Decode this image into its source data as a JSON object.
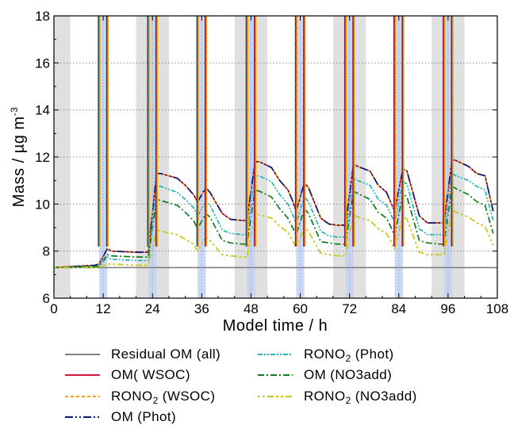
{
  "chart_data": {
    "type": "line",
    "xlabel": "Model  time  /  h",
    "ylabel_main": "Mass / µg m",
    "ylabel_sup": "-3",
    "xlim": [
      0,
      108
    ],
    "ylim": [
      6,
      18
    ],
    "xticks": [
      0,
      12,
      24,
      36,
      48,
      60,
      72,
      84,
      96,
      108
    ],
    "yticks": [
      6,
      8,
      10,
      12,
      14,
      16,
      18
    ],
    "grid": "horizontal dotted",
    "night_bands": [
      [
        0,
        4
      ],
      [
        20,
        28
      ],
      [
        44,
        52
      ],
      [
        68,
        76
      ],
      [
        92,
        100
      ]
    ],
    "emission_bands": [
      [
        11,
        13
      ],
      [
        23,
        25
      ],
      [
        35,
        37
      ],
      [
        47,
        49
      ],
      [
        59,
        61
      ],
      [
        71,
        73
      ],
      [
        83,
        85
      ],
      [
        95,
        97
      ]
    ],
    "emission_spikes": [
      11,
      13,
      23,
      25,
      35,
      37,
      47,
      49,
      59,
      61,
      71,
      73,
      83,
      85,
      95,
      97
    ],
    "series": [
      {
        "name": "Residual OM (all)",
        "color": "#808080",
        "dash": "solid",
        "x": [
          0,
          108
        ],
        "y": [
          7.3,
          7.3
        ]
      },
      {
        "name": "OM( WSOC)",
        "color": "#d6163c",
        "dash": "solid",
        "x": [
          0,
          10,
          11,
          13,
          14,
          20,
          22,
          23,
          25,
          26,
          30,
          32,
          34,
          35,
          37,
          38,
          41,
          43,
          46,
          47,
          49,
          50,
          53,
          55,
          57,
          58,
          59,
          61,
          62,
          65,
          67,
          69,
          70,
          71,
          73,
          74,
          77,
          79,
          81,
          82,
          83,
          85,
          86,
          89,
          91,
          94,
          95,
          97,
          98,
          101,
          103,
          105,
          107
        ],
        "y": [
          7.3,
          7.4,
          7.45,
          8.1,
          8.0,
          7.95,
          7.95,
          7.95,
          11.3,
          11.3,
          11.1,
          10.8,
          10.4,
          10.1,
          10.7,
          10.5,
          9.6,
          9.35,
          9.3,
          9.3,
          11.8,
          11.8,
          11.55,
          11.0,
          10.6,
          10.2,
          9.7,
          10.9,
          10.7,
          9.4,
          9.15,
          9.1,
          9.1,
          9.1,
          11.7,
          11.6,
          11.4,
          10.8,
          10.5,
          10.1,
          9.7,
          11.5,
          11.4,
          9.5,
          9.2,
          9.2,
          9.2,
          11.9,
          11.85,
          11.6,
          11.3,
          11.2,
          9.7
        ]
      },
      {
        "name": "RONO2 (WSOC)",
        "color": "#ff9a00",
        "dash": "4,3",
        "x": [
          0,
          10,
          11,
          13,
          14,
          20,
          22,
          23,
          25,
          26,
          30,
          32,
          34,
          35,
          37,
          38,
          41,
          43,
          46,
          47,
          49,
          50,
          53,
          55,
          57,
          58,
          59,
          61,
          62,
          65,
          67,
          69,
          70,
          71,
          73,
          74,
          77,
          79,
          81,
          82,
          83,
          85,
          86,
          89,
          91,
          94,
          95,
          97,
          98,
          101,
          103,
          105,
          107
        ],
        "y": [
          7.3,
          7.4,
          7.45,
          8.1,
          8.0,
          7.95,
          7.95,
          7.95,
          11.3,
          11.3,
          11.1,
          10.8,
          10.4,
          10.1,
          10.7,
          10.5,
          9.6,
          9.35,
          9.3,
          9.3,
          11.8,
          11.8,
          11.55,
          11.0,
          10.6,
          10.2,
          9.7,
          10.9,
          10.7,
          9.4,
          9.15,
          9.1,
          9.1,
          9.1,
          11.7,
          11.6,
          11.4,
          10.8,
          10.5,
          10.1,
          9.7,
          11.5,
          11.4,
          9.5,
          9.2,
          9.2,
          9.2,
          11.9,
          11.85,
          11.6,
          11.3,
          11.2,
          9.7
        ]
      },
      {
        "name": "OM (Phot)",
        "color": "#0b1a7a",
        "dash": "10,3,2,3,2,3",
        "x": [
          0,
          10,
          11,
          13,
          14,
          20,
          22,
          23,
          25,
          26,
          30,
          32,
          34,
          35,
          37,
          38,
          41,
          43,
          46,
          47,
          49,
          50,
          53,
          55,
          57,
          58,
          59,
          61,
          62,
          65,
          67,
          69,
          70,
          71,
          73,
          74,
          77,
          79,
          81,
          82,
          83,
          85,
          86,
          89,
          91,
          94,
          95,
          97,
          98,
          101,
          103,
          105,
          107
        ],
        "y": [
          7.3,
          7.4,
          7.45,
          8.1,
          8.0,
          7.95,
          7.95,
          7.95,
          11.3,
          11.3,
          11.1,
          10.8,
          10.4,
          10.1,
          10.7,
          10.5,
          9.6,
          9.35,
          9.3,
          9.3,
          11.8,
          11.8,
          11.55,
          11.0,
          10.6,
          10.2,
          9.7,
          10.9,
          10.7,
          9.4,
          9.15,
          9.1,
          9.1,
          9.1,
          11.7,
          11.6,
          11.4,
          10.8,
          10.5,
          10.1,
          9.7,
          11.5,
          11.4,
          9.5,
          9.2,
          9.2,
          9.2,
          11.9,
          11.85,
          11.6,
          11.3,
          11.2,
          9.7
        ]
      },
      {
        "name": "RONO2 (Phot)",
        "color": "#22b3b8",
        "dash": "6,2,2,2,2,2",
        "x": [
          0,
          10,
          11,
          13,
          14,
          20,
          22,
          23,
          25,
          26,
          30,
          32,
          34,
          35,
          37,
          38,
          41,
          43,
          46,
          47,
          49,
          50,
          53,
          55,
          57,
          58,
          59,
          61,
          62,
          65,
          67,
          69,
          70,
          71,
          73,
          74,
          77,
          79,
          81,
          82,
          83,
          85,
          86,
          89,
          91,
          94,
          95,
          97,
          98,
          101,
          103,
          105,
          107
        ],
        "y": [
          7.3,
          7.35,
          7.35,
          7.75,
          7.65,
          7.6,
          7.6,
          7.6,
          10.8,
          10.75,
          10.5,
          10.2,
          9.85,
          9.5,
          10.1,
          9.95,
          8.9,
          8.75,
          8.7,
          8.7,
          11.2,
          11.2,
          10.95,
          10.4,
          10.0,
          9.6,
          9.2,
          10.3,
          10.1,
          8.85,
          8.65,
          8.6,
          8.6,
          8.6,
          11.1,
          11.0,
          10.8,
          10.2,
          9.95,
          9.6,
          9.2,
          10.95,
          10.85,
          8.95,
          8.7,
          8.7,
          8.7,
          11.3,
          11.2,
          11.0,
          10.75,
          10.6,
          9.3
        ]
      },
      {
        "name": "OM (NO3add)",
        "color": "#0e7c1c",
        "dash": "8,3,2,3",
        "x": [
          0,
          10,
          11,
          13,
          14,
          20,
          22,
          23,
          25,
          26,
          30,
          32,
          34,
          35,
          37,
          38,
          41,
          43,
          46,
          47,
          49,
          50,
          53,
          55,
          57,
          58,
          59,
          61,
          62,
          65,
          67,
          69,
          70,
          71,
          73,
          74,
          77,
          79,
          81,
          82,
          83,
          85,
          86,
          89,
          91,
          94,
          95,
          97,
          98,
          101,
          103,
          105,
          107
        ],
        "y": [
          7.3,
          7.35,
          7.35,
          7.85,
          7.8,
          7.75,
          7.75,
          7.75,
          10.2,
          10.15,
          9.95,
          9.65,
          9.3,
          8.95,
          9.6,
          9.45,
          8.45,
          8.35,
          8.3,
          8.3,
          10.6,
          10.55,
          10.3,
          9.8,
          9.4,
          9.05,
          8.7,
          9.8,
          9.6,
          8.4,
          8.35,
          8.3,
          8.3,
          8.3,
          10.55,
          10.45,
          10.2,
          9.65,
          9.4,
          9.05,
          8.65,
          10.45,
          10.3,
          8.45,
          8.35,
          8.3,
          8.3,
          10.75,
          10.65,
          10.4,
          10.1,
          9.95,
          8.75
        ]
      },
      {
        "name": "RONO2 (NO3add)",
        "color": "#c8c812",
        "dash": "3,3,3,3,8,3",
        "x": [
          0,
          10,
          11,
          13,
          14,
          20,
          22,
          23,
          25,
          26,
          30,
          32,
          34,
          35,
          37,
          38,
          41,
          43,
          46,
          47,
          49,
          50,
          53,
          55,
          57,
          58,
          59,
          61,
          62,
          65,
          67,
          69,
          70,
          71,
          73,
          74,
          77,
          79,
          81,
          82,
          83,
          85,
          86,
          89,
          91,
          94,
          95,
          97,
          98,
          101,
          103,
          105,
          107
        ],
        "y": [
          7.3,
          7.3,
          7.3,
          7.45,
          7.45,
          7.4,
          7.4,
          7.4,
          8.9,
          8.85,
          8.7,
          8.5,
          8.3,
          8.0,
          8.6,
          8.45,
          7.85,
          7.8,
          7.75,
          7.75,
          9.6,
          9.55,
          9.4,
          9.05,
          8.8,
          8.5,
          8.15,
          9.0,
          8.85,
          7.9,
          7.85,
          7.8,
          7.8,
          7.8,
          9.55,
          9.45,
          9.3,
          8.95,
          8.75,
          8.45,
          8.1,
          9.5,
          9.35,
          7.95,
          7.85,
          7.85,
          7.85,
          9.75,
          9.65,
          9.45,
          9.2,
          9.05,
          8.25
        ]
      }
    ],
    "legend_labels": [
      {
        "main": "Residual OM (all)",
        "sub": "",
        "tail": ""
      },
      {
        "main": "OM( WSOC)",
        "sub": "",
        "tail": ""
      },
      {
        "main": "RONO",
        "sub": "2",
        "tail": " (WSOC)"
      },
      {
        "main": "OM (Phot)",
        "sub": "",
        "tail": ""
      },
      {
        "main": "RONO",
        "sub": "2",
        "tail": " (Phot)"
      },
      {
        "main": "OM (NO3add)",
        "sub": "",
        "tail": ""
      },
      {
        "main": "RONO",
        "sub": "2",
        "tail": " (NO3add)"
      }
    ],
    "legend_placement": "bottom, two columns",
    "colors": {
      "night_band": "#e0e0e0",
      "emission_band": "#c6d2ee",
      "grid": "#8c8c8c"
    }
  }
}
